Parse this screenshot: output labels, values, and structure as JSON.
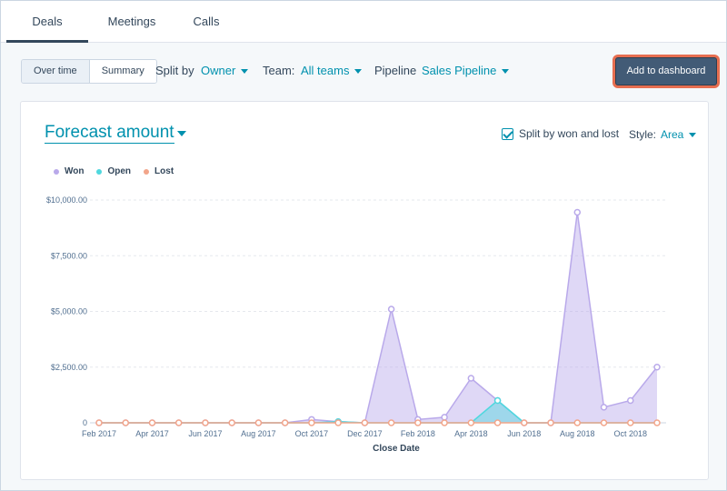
{
  "tabs": [
    {
      "label": "Deals",
      "active": true
    },
    {
      "label": "Meetings",
      "active": false
    },
    {
      "label": "Calls",
      "active": false
    }
  ],
  "filters": {
    "view_toggle": [
      "Over time",
      "Summary"
    ],
    "split_by_label": "Split by",
    "split_by_value": "Owner",
    "team_label": "Team:",
    "team_value": "All teams",
    "pipeline_label": "Pipeline",
    "pipeline_value": "Sales Pipeline",
    "add_button": "Add to dashboard"
  },
  "report": {
    "title": "Forecast amount",
    "split_checkbox_label": "Split by won and lost",
    "split_checked": true,
    "style_label": "Style:",
    "style_value": "Area"
  },
  "colors": {
    "won": "#b9a9ea",
    "open": "#4fd8de",
    "lost": "#f2a58a",
    "accent": "#0091ae",
    "button": "#425b76",
    "button_outline": "#e66e50"
  },
  "chart_data": {
    "type": "area",
    "xlabel": "Close Date",
    "ylabel": "",
    "ylim": [
      0,
      10000
    ],
    "y_ticks": [
      "0",
      "$2,500.00",
      "$5,000.00",
      "$7,500.00",
      "$10,000.00"
    ],
    "y_tick_values": [
      0,
      2500,
      5000,
      7500,
      10000
    ],
    "x_tick_labels": [
      "Feb 2017",
      "Apr 2017",
      "Jun 2017",
      "Aug 2017",
      "Oct 2017",
      "Dec 2017",
      "Feb 2018",
      "Apr 2018",
      "Jun 2018",
      "Aug 2018",
      "Oct 2018"
    ],
    "x": [
      "Feb 2017",
      "Mar 2017",
      "Apr 2017",
      "May 2017",
      "Jun 2017",
      "Jul 2017",
      "Aug 2017",
      "Sep 2017",
      "Oct 2017",
      "Nov 2017",
      "Dec 2017",
      "Jan 2018",
      "Feb 2018",
      "Mar 2018",
      "Apr 2018",
      "May 2018",
      "Jun 2018",
      "Jul 2018",
      "Aug 2018",
      "Sep 2018",
      "Oct 2018",
      "Nov 2018"
    ],
    "legend_position": "top-left",
    "grid": true,
    "series": [
      {
        "name": "Won",
        "values": [
          0,
          0,
          0,
          0,
          0,
          0,
          0,
          0,
          150,
          50,
          0,
          5100,
          150,
          250,
          2000,
          1000,
          0,
          0,
          9450,
          700,
          1000,
          2500
        ]
      },
      {
        "name": "Open",
        "values": [
          0,
          0,
          0,
          0,
          0,
          0,
          0,
          0,
          0,
          50,
          0,
          0,
          0,
          0,
          0,
          1000,
          0,
          0,
          0,
          0,
          0,
          0
        ]
      },
      {
        "name": "Lost",
        "values": [
          0,
          0,
          0,
          0,
          0,
          0,
          0,
          0,
          0,
          0,
          0,
          0,
          0,
          0,
          0,
          0,
          0,
          0,
          0,
          0,
          0,
          0
        ]
      }
    ]
  }
}
